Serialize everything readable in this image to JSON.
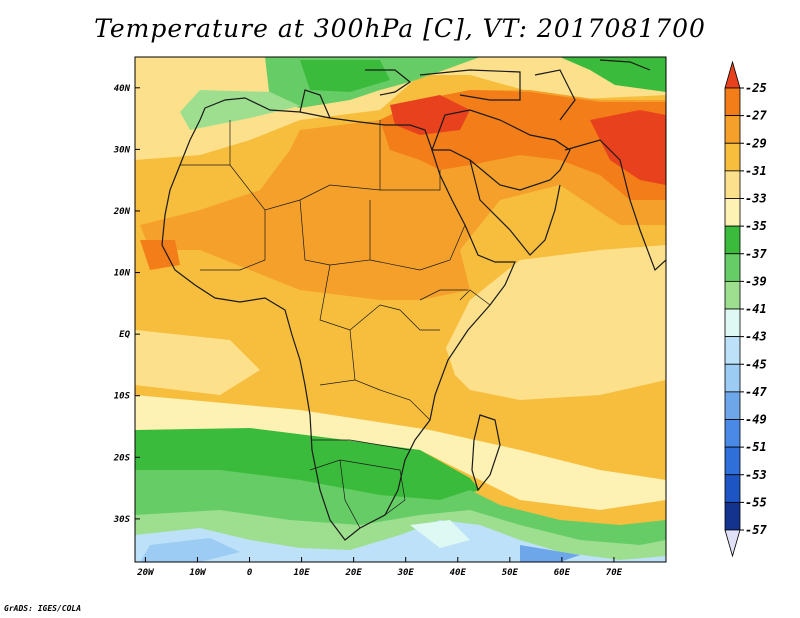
{
  "title": "Temperature at 300hPa [C], VT: 2017081700",
  "credit": "GrADS: IGES/COLA",
  "map": {
    "lon_range": [
      -22,
      80
    ],
    "lat_range": [
      -37,
      45
    ],
    "lon_ticks": [
      "20W",
      "10W",
      "0",
      "10E",
      "20E",
      "30E",
      "40E",
      "50E",
      "60E",
      "70E"
    ],
    "lat_ticks": [
      "40N",
      "30N",
      "20N",
      "10N",
      "EQ",
      "10S",
      "20S",
      "30S"
    ]
  },
  "colorbar": {
    "labels": [
      "-25",
      "-27",
      "-29",
      "-31",
      "-33",
      "-35",
      "-37",
      "-39",
      "-41",
      "-43",
      "-45",
      "-47",
      "-49",
      "-51",
      "-53",
      "-55",
      "-57"
    ],
    "colors": [
      "#e8411e",
      "#f37d18",
      "#f5a02a",
      "#f7be3e",
      "#fce08c",
      "#fdf1b4",
      "#3bbb3b",
      "#66cc66",
      "#9ddf8f",
      "#def9f3",
      "#bde1f8",
      "#9ccbf3",
      "#6ea6ea",
      "#4a8ae6",
      "#2f6fd9",
      "#1d55c4",
      "#13338f",
      "#e0e0f6"
    ]
  }
}
